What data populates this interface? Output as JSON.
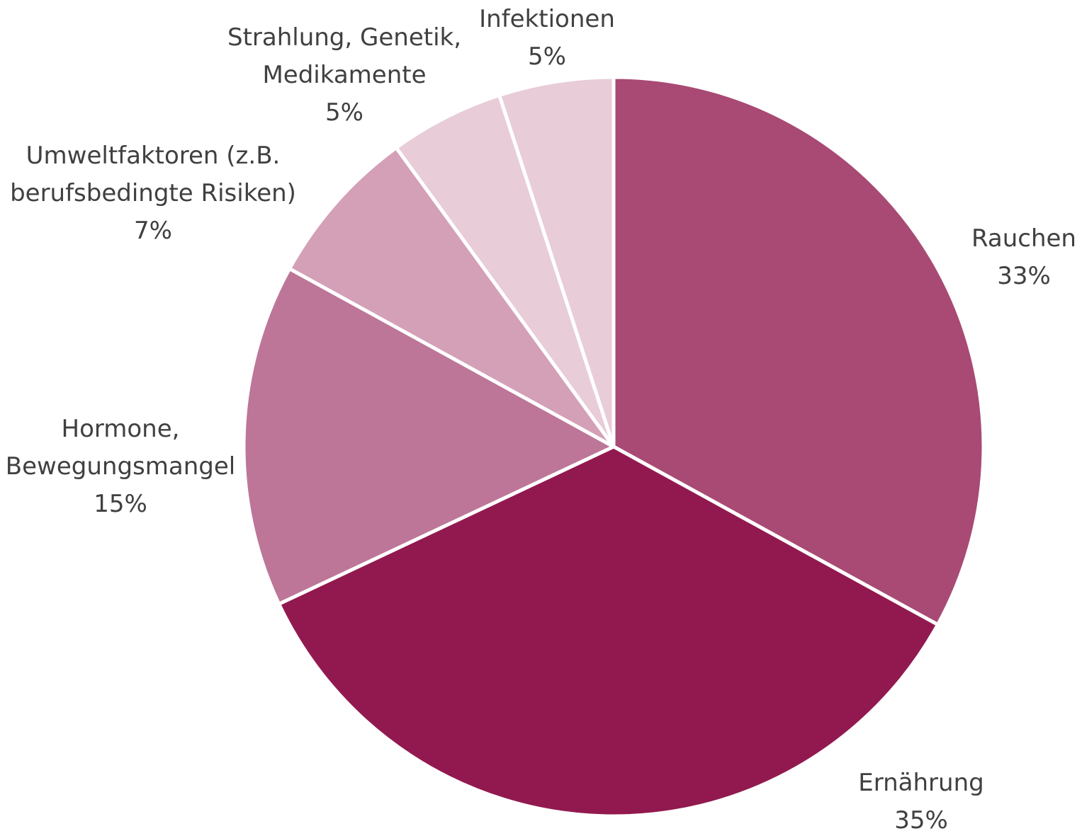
{
  "chart_data": {
    "type": "pie",
    "title": "",
    "start_angle_deg": 0,
    "direction": "clockwise",
    "slices": [
      {
        "label": [
          "Rauchen"
        ],
        "value": 33,
        "value_label": "33%",
        "color": "#a84a74"
      },
      {
        "label": [
          "Ernährung"
        ],
        "value": 35,
        "value_label": "35%",
        "color": "#92194f"
      },
      {
        "label": [
          "Hormone,",
          "Bewegungsmangel"
        ],
        "value": 15,
        "value_label": "15%",
        "color": "#bd7698"
      },
      {
        "label": [
          "Umweltfaktoren (z.B.",
          "berufsbedingte Risiken)"
        ],
        "value": 7,
        "value_label": "7%",
        "color": "#d4a0b7"
      },
      {
        "label": [
          "Strahlung, Genetik,",
          "Medikamente"
        ],
        "value": 5,
        "value_label": "5%",
        "color": "#e8ccd8"
      },
      {
        "label": [
          "Infektionen"
        ],
        "value": 5,
        "value_label": "5%",
        "color": "#e8ccd8"
      }
    ],
    "legend": "none",
    "data_labels": "outside"
  }
}
